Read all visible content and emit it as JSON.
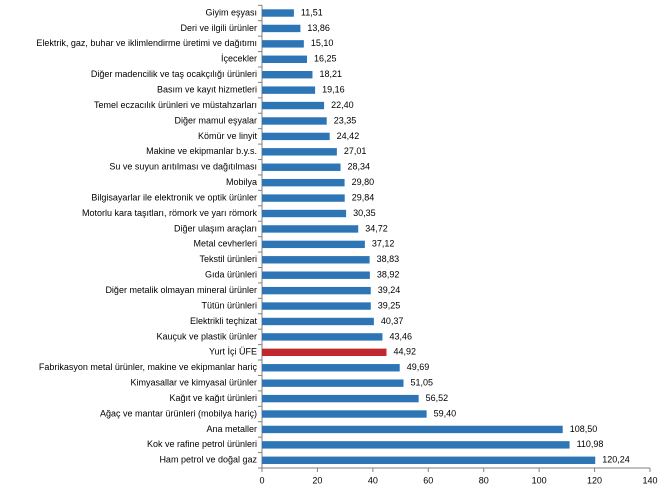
{
  "chart_data": {
    "type": "bar",
    "orientation": "horizontal",
    "categories": [
      "Giyim eşyası",
      "Deri ve ilgili ürünler",
      "Elektrik, gaz, buhar ve iklimlendirme üretimi ve dağıtımı",
      "İçecekler",
      "Diğer madencilik ve taş ocakçılığı ürünleri",
      "Basım ve kayıt hizmetleri",
      "Temel eczacılık ürünleri ve müstahzarları",
      "Diğer mamul eşyalar",
      "Kömür ve linyit",
      "Makine ve ekipmanlar b.y.s.",
      "Su ve suyun arıtılması ve dağıtılması",
      "Mobilya",
      "Bilgisayarlar ile elektronik ve optik ürünler",
      "Motorlu kara taşıtları, römork ve yarı römork",
      "Diğer ulaşım araçları",
      "Metal cevherleri",
      "Tekstil ürünleri",
      "Gıda ürünleri",
      "Diğer metalik olmayan mineral ürünler",
      "Tütün ürünleri",
      "Elektrikli teçhizat",
      "Kauçuk ve plastik ürünler",
      "Yurt İçi ÜFE",
      "Fabrikasyon metal ürünler, makine ve ekipmanlar hariç",
      "Kimyasallar ve kimyasal ürünler",
      "Kağıt ve kağıt ürünleri",
      "Ağaç ve mantar ürünleri (mobilya hariç)",
      "Ana metaller",
      "Kok ve rafine petrol ürünleri",
      "Ham petrol ve doğal gaz"
    ],
    "values": [
      11.51,
      13.86,
      15.1,
      16.25,
      18.21,
      19.16,
      22.4,
      23.35,
      24.42,
      27.01,
      28.34,
      29.8,
      29.84,
      30.35,
      34.72,
      37.12,
      38.83,
      38.92,
      39.24,
      39.25,
      40.37,
      43.46,
      44.92,
      49.69,
      51.05,
      56.52,
      59.4,
      108.5,
      110.98,
      120.24
    ],
    "value_labels": [
      "11,51",
      "13,86",
      "15,10",
      "16,25",
      "18,21",
      "19,16",
      "22,40",
      "23,35",
      "24,42",
      "27,01",
      "28,34",
      "29,80",
      "29,84",
      "30,35",
      "34,72",
      "37,12",
      "38,83",
      "38,92",
      "39,24",
      "39,25",
      "40,37",
      "43,46",
      "44,92",
      "49,69",
      "51,05",
      "56,52",
      "59,40",
      "108,50",
      "110,98",
      "120,24"
    ],
    "colors": [
      "#2e75b6",
      "#2e75b6",
      "#2e75b6",
      "#2e75b6",
      "#2e75b6",
      "#2e75b6",
      "#2e75b6",
      "#2e75b6",
      "#2e75b6",
      "#2e75b6",
      "#2e75b6",
      "#2e75b6",
      "#2e75b6",
      "#2e75b6",
      "#2e75b6",
      "#2e75b6",
      "#2e75b6",
      "#2e75b6",
      "#2e75b6",
      "#2e75b6",
      "#2e75b6",
      "#2e75b6",
      "#c0282d",
      "#2e75b6",
      "#2e75b6",
      "#2e75b6",
      "#2e75b6",
      "#2e75b6",
      "#2e75b6",
      "#2e75b6"
    ],
    "xlim": [
      0,
      140
    ],
    "xticks": [
      0,
      20,
      40,
      60,
      80,
      100,
      120,
      140
    ],
    "grid": false
  }
}
